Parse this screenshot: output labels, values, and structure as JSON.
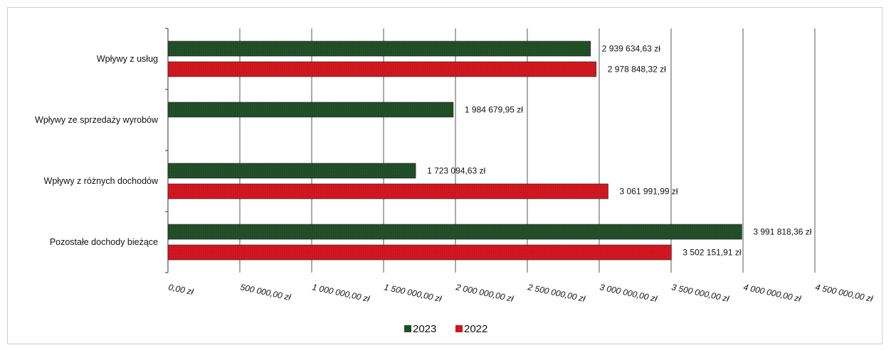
{
  "chart_data": {
    "type": "bar",
    "orientation": "horizontal",
    "categories": [
      "Wpływy z usług",
      "Wpływy ze sprzedaży wyrobów",
      "Wpływy z różnych dochodów",
      "Pozostałe dochody bieżące"
    ],
    "series": [
      {
        "name": "2023",
        "color": "#1f4d26",
        "values": [
          2939634.63,
          1984679.95,
          1723094.63,
          3991818.36
        ],
        "labels": [
          "2 939 634,63 zł",
          "1 984 679,95 zł",
          "1 723 094,63 zł",
          "3 991 818,36 zł"
        ]
      },
      {
        "name": "2022",
        "color": "#d0151e",
        "values": [
          2978848.32,
          null,
          3061991.99,
          3502151.91
        ],
        "labels": [
          "2 978 848,32 zł",
          "",
          "3 061 991,99 zł",
          "3 502 151,91 zł"
        ]
      }
    ],
    "xlim": [
      0,
      4500000
    ],
    "x_ticks": [
      0,
      500000,
      1000000,
      1500000,
      2000000,
      2500000,
      3000000,
      3500000,
      4000000,
      4500000
    ],
    "x_tick_labels": [
      "0,00 zł",
      "500 000,00 zł",
      "1 000 000,00 zł",
      "1 500 000,00 zł",
      "2 000 000,00 zł",
      "2 500 000,00 zł",
      "3 000 000,00 zł",
      "3 500 000,00 zł",
      "4 000 000,00 zł",
      "4 500 000,00 zł"
    ],
    "grid": true,
    "legend": "bottom"
  }
}
